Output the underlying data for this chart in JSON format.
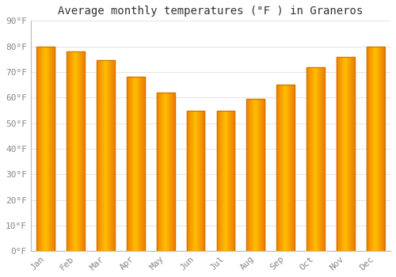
{
  "title": "Average monthly temperatures (°F ) in Graneros",
  "months": [
    "Jan",
    "Feb",
    "Mar",
    "Apr",
    "May",
    "Jun",
    "Jul",
    "Aug",
    "Sep",
    "Oct",
    "Nov",
    "Dec"
  ],
  "values": [
    80,
    78,
    74.5,
    68,
    62,
    55,
    55,
    59.5,
    65,
    72,
    76,
    80
  ],
  "bar_color_center": "#FFBF00",
  "bar_color_edge": "#F08000",
  "background_color": "#FFFFFF",
  "plot_bg_color": "#FFFFFF",
  "ylim": [
    0,
    90
  ],
  "yticks": [
    0,
    10,
    20,
    30,
    40,
    50,
    60,
    70,
    80,
    90
  ],
  "ytick_labels": [
    "0°F",
    "10°F",
    "20°F",
    "30°F",
    "40°F",
    "50°F",
    "60°F",
    "70°F",
    "80°F",
    "90°F"
  ],
  "grid_color": "#e0e0e0",
  "title_fontsize": 10,
  "tick_fontsize": 8,
  "font_family": "monospace",
  "tick_color": "#888888",
  "bar_width": 0.6
}
